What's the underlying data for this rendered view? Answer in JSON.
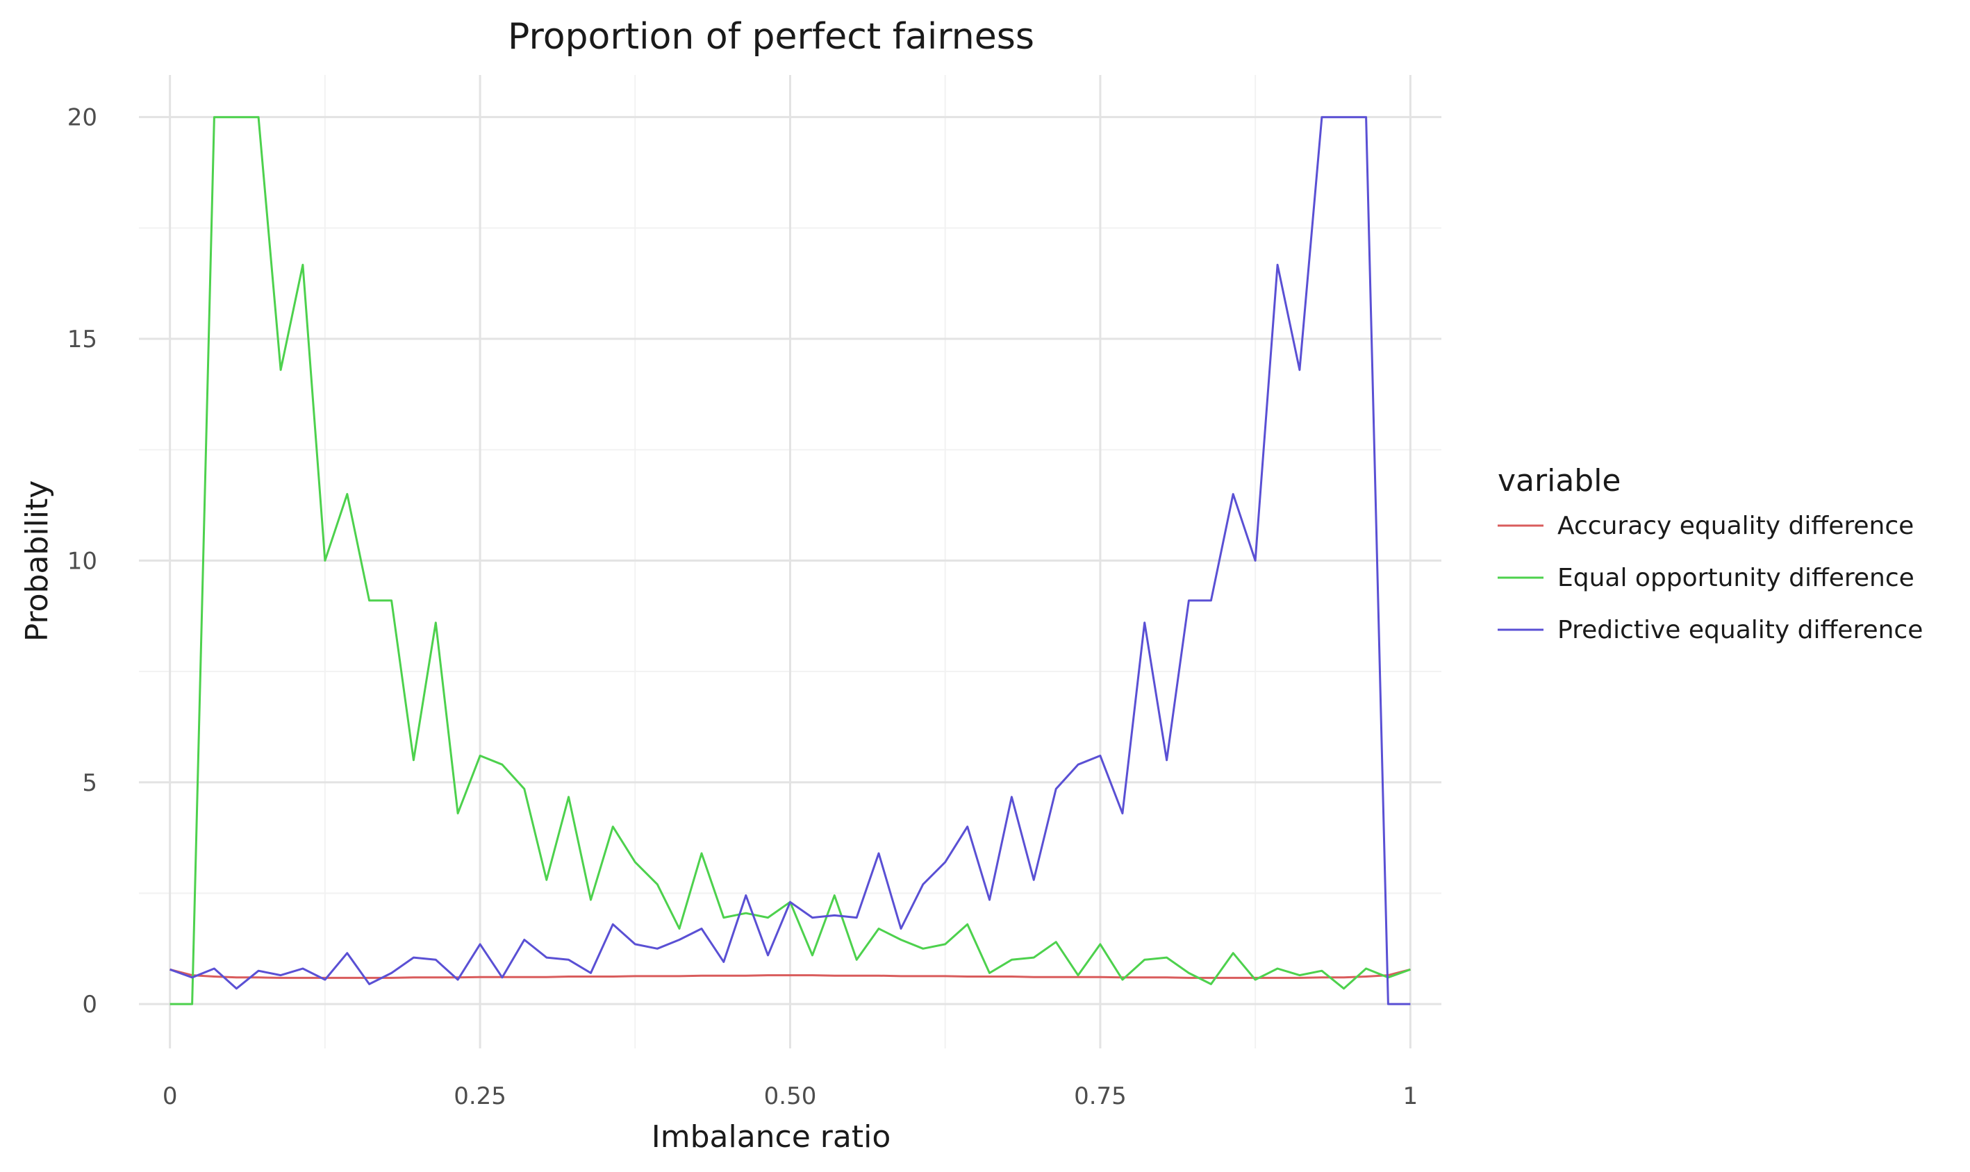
{
  "chart_data": {
    "type": "line",
    "title": "Proportion of perfect fairness",
    "xlabel": "Imbalance ratio",
    "ylabel": "Probability",
    "xlim": [
      -0.025,
      1.025
    ],
    "ylim": [
      -1.0,
      20.95
    ],
    "xticks": [
      0,
      0.25,
      0.5,
      0.75,
      1
    ],
    "xtick_labels": [
      "0",
      "0.25",
      "0.50",
      "0.75",
      "1"
    ],
    "yticks": [
      0,
      5,
      10,
      15,
      20
    ],
    "ytick_labels": [
      "0",
      "5",
      "10",
      "15",
      "20"
    ],
    "x_minor": [
      0.125,
      0.375,
      0.625,
      0.875
    ],
    "y_minor": [
      2.5,
      7.5,
      12.5,
      17.5
    ],
    "grid": true,
    "legend_title": "variable",
    "legend_position": "right",
    "x": [
      0.0,
      0.0179,
      0.0357,
      0.0536,
      0.0714,
      0.0893,
      0.1071,
      0.125,
      0.1429,
      0.1607,
      0.1786,
      0.1964,
      0.2143,
      0.2321,
      0.25,
      0.2679,
      0.2857,
      0.3036,
      0.3214,
      0.3393,
      0.3571,
      0.375,
      0.3929,
      0.4107,
      0.4286,
      0.4464,
      0.4643,
      0.4821,
      0.5,
      0.5179,
      0.5357,
      0.5536,
      0.5714,
      0.5893,
      0.6071,
      0.625,
      0.6429,
      0.6607,
      0.6786,
      0.6964,
      0.7143,
      0.7321,
      0.75,
      0.7679,
      0.7857,
      0.8036,
      0.8214,
      0.8393,
      0.8571,
      0.875,
      0.8929,
      0.9107,
      0.9286,
      0.9464,
      0.9643,
      0.9821,
      1.0
    ],
    "series": [
      {
        "name": "Accuracy equality difference",
        "color": "#D95C5C",
        "values": [
          0.78,
          0.65,
          0.62,
          0.6,
          0.6,
          0.59,
          0.59,
          0.59,
          0.59,
          0.59,
          0.59,
          0.6,
          0.6,
          0.6,
          0.61,
          0.61,
          0.61,
          0.61,
          0.62,
          0.62,
          0.62,
          0.63,
          0.63,
          0.63,
          0.64,
          0.64,
          0.64,
          0.65,
          0.65,
          0.65,
          0.64,
          0.64,
          0.64,
          0.63,
          0.63,
          0.63,
          0.62,
          0.62,
          0.62,
          0.61,
          0.61,
          0.61,
          0.61,
          0.6,
          0.6,
          0.6,
          0.59,
          0.59,
          0.59,
          0.59,
          0.59,
          0.59,
          0.6,
          0.6,
          0.62,
          0.65,
          0.78
        ]
      },
      {
        "name": "Equal opportunity difference",
        "color": "#4DD14D",
        "values": [
          0.0,
          0.0,
          20.0,
          20.0,
          20.0,
          14.3,
          16.67,
          10.0,
          11.5,
          9.1,
          9.1,
          5.5,
          8.6,
          4.3,
          5.6,
          5.4,
          4.85,
          2.8,
          4.67,
          2.35,
          4.0,
          3.2,
          2.7,
          1.7,
          3.4,
          1.95,
          2.05,
          1.95,
          2.3,
          1.1,
          2.45,
          1.0,
          1.7,
          1.45,
          1.25,
          1.35,
          1.8,
          0.7,
          1.0,
          1.05,
          1.4,
          0.65,
          1.35,
          0.55,
          1.0,
          1.05,
          0.7,
          0.45,
          1.15,
          0.55,
          0.8,
          0.65,
          0.75,
          0.35,
          0.8,
          0.6,
          0.78
        ]
      },
      {
        "name": "Predictive equality difference",
        "color": "#5A50D4",
        "values": [
          0.78,
          0.6,
          0.8,
          0.35,
          0.75,
          0.65,
          0.8,
          0.55,
          1.15,
          0.45,
          0.7,
          1.05,
          1.0,
          0.55,
          1.35,
          0.6,
          1.45,
          1.05,
          1.0,
          0.7,
          1.8,
          1.35,
          1.25,
          1.45,
          1.7,
          0.95,
          2.45,
          1.1,
          2.3,
          1.95,
          2.0,
          1.95,
          3.4,
          1.7,
          2.7,
          3.2,
          4.0,
          2.35,
          4.67,
          2.8,
          4.85,
          5.4,
          5.6,
          4.3,
          8.6,
          5.5,
          9.1,
          9.1,
          11.5,
          10.0,
          16.67,
          14.3,
          20.0,
          20.0,
          20.0,
          0.0,
          0.0
        ]
      }
    ]
  }
}
